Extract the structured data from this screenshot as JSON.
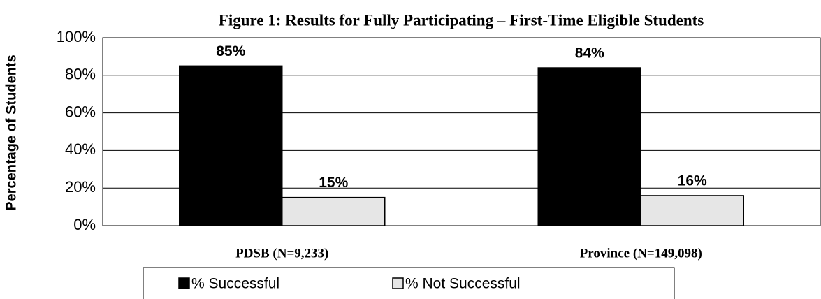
{
  "chart_data": {
    "type": "bar",
    "title": "Figure 1:  Results for Fully Participating – First-Time Eligible Students",
    "y_label": "Percentage of Students",
    "categories": [
      "PDSB (N=9,233)",
      "Province (N=149,098)"
    ],
    "series": [
      {
        "name": "% Successful",
        "color": "#000000",
        "values": [
          85,
          84
        ],
        "value_labels": [
          "85%",
          "84%"
        ]
      },
      {
        "name": "% Not Successful",
        "color": "#e6e6e6",
        "values": [
          15,
          16
        ],
        "value_labels": [
          "15%",
          "16%"
        ]
      }
    ],
    "ylim": [
      0,
      100
    ],
    "yticks": [
      {
        "value": 0,
        "label": "0%"
      },
      {
        "value": 20,
        "label": "20%"
      },
      {
        "value": 40,
        "label": "40%"
      },
      {
        "value": 60,
        "label": "60%"
      },
      {
        "value": 80,
        "label": "80%"
      },
      {
        "value": 100,
        "label": "100%"
      }
    ],
    "grid": true,
    "legend": "bottom"
  }
}
